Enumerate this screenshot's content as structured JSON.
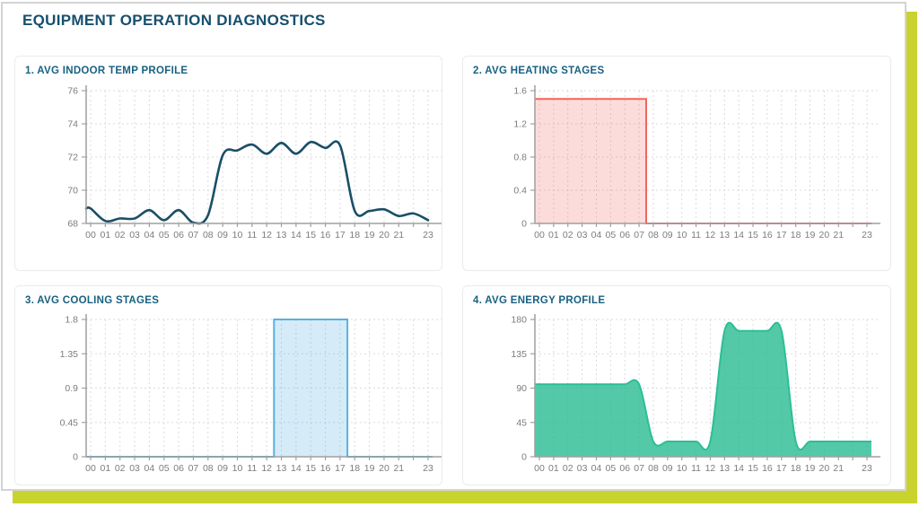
{
  "page": {
    "title": "EQUIPMENT OPERATION DIAGNOSTICS",
    "colors": {
      "accent": "#c9d32e",
      "page_title": "#164f6e",
      "card_title": "#186183",
      "axis": "#9f9f9f",
      "grid": "#dbdbdb",
      "tick_label": "#7c7c7c"
    }
  },
  "chart_data": [
    {
      "type": "line",
      "title": "1. AVG INDOOR TEMP PROFILE",
      "x": [
        0,
        1,
        2,
        3,
        4,
        5,
        6,
        7,
        8,
        9,
        10,
        11,
        12,
        13,
        14,
        15,
        16,
        17,
        18,
        19,
        20,
        21,
        22,
        23
      ],
      "values": [
        68.9,
        68.15,
        68.3,
        68.3,
        68.8,
        68.2,
        68.8,
        68.05,
        68.5,
        72.1,
        72.4,
        72.75,
        72.2,
        72.85,
        72.2,
        72.9,
        72.55,
        72.7,
        68.75,
        68.75,
        68.85,
        68.45,
        68.6,
        68.2
      ],
      "ylim": [
        68,
        76
      ],
      "yticks": [
        68,
        70,
        72,
        74,
        76
      ],
      "ytick_labels": [
        "68",
        "70",
        "72",
        "74",
        "76"
      ],
      "xtick_labels": [
        "00",
        "01",
        "02",
        "03",
        "04",
        "05",
        "06",
        "07",
        "08",
        "09",
        "10",
        "11",
        "12",
        "13",
        "14",
        "15",
        "16",
        "17",
        "18",
        "19",
        "20",
        "21",
        "",
        "23"
      ],
      "line_color": "#1a4f66",
      "grid": true,
      "legend": "none"
    },
    {
      "type": "area-step",
      "title": "2. AVG HEATING STAGES",
      "x": [
        0,
        1,
        2,
        3,
        4,
        5,
        6,
        7,
        8,
        9,
        10,
        11,
        12,
        13,
        14,
        15,
        16,
        17,
        18,
        19,
        20,
        21,
        22,
        23
      ],
      "values": [
        1.5,
        1.5,
        1.5,
        1.5,
        1.5,
        1.5,
        1.5,
        1.5,
        0,
        0,
        0,
        0,
        0,
        0,
        0,
        0,
        0,
        0,
        0,
        0,
        0,
        0,
        0,
        0
      ],
      "steps": [
        [
          0,
          1.5
        ],
        [
          7.5,
          1.5
        ],
        [
          7.5,
          0
        ],
        [
          23,
          0
        ]
      ],
      "ylim": [
        0,
        1.6
      ],
      "yticks": [
        0,
        0.4,
        0.8,
        1.2,
        1.6
      ],
      "ytick_labels": [
        "0",
        "0.4",
        "0.8",
        "1.2",
        "1.6"
      ],
      "xtick_labels": [
        "00",
        "01",
        "02",
        "03",
        "04",
        "05",
        "06",
        "07",
        "08",
        "09",
        "10",
        "11",
        "12",
        "13",
        "14",
        "15",
        "16",
        "17",
        "18",
        "19",
        "20",
        "21",
        "",
        "23"
      ],
      "stroke": "#f1655c",
      "fill": "rgba(241,97,90,0.22)",
      "grid": true,
      "legend": "none"
    },
    {
      "type": "area-step",
      "title": "3. AVG COOLING STAGES",
      "x": [
        0,
        1,
        2,
        3,
        4,
        5,
        6,
        7,
        8,
        9,
        10,
        11,
        12,
        13,
        14,
        15,
        16,
        17,
        18,
        19,
        20,
        21,
        22,
        23
      ],
      "values": [
        0,
        0,
        0,
        0,
        0,
        0,
        0,
        0,
        0,
        0,
        0,
        0,
        0,
        1.8,
        1.8,
        1.8,
        1.8,
        1.8,
        0,
        0,
        0,
        0,
        0,
        0
      ],
      "steps": [
        [
          0,
          0
        ],
        [
          12.5,
          0
        ],
        [
          12.5,
          1.8
        ],
        [
          17.5,
          1.8
        ],
        [
          17.5,
          0
        ],
        [
          23,
          0
        ]
      ],
      "ylim": [
        0,
        1.8
      ],
      "yticks": [
        0,
        0.45,
        0.9,
        1.35,
        1.8
      ],
      "ytick_labels": [
        "0",
        "0.45",
        "0.9",
        "1.35",
        "1.8"
      ],
      "xtick_labels": [
        "00",
        "01",
        "02",
        "03",
        "04",
        "05",
        "06",
        "07",
        "08",
        "09",
        "10",
        "11",
        "12",
        "13",
        "14",
        "15",
        "16",
        "17",
        "18",
        "19",
        "20",
        "21",
        "",
        "23"
      ],
      "stroke": "#58b1e2",
      "fill": "rgba(87,177,226,0.25)",
      "grid": true,
      "legend": "none"
    },
    {
      "type": "area",
      "title": "4. AVG ENERGY PROFILE",
      "x": [
        0,
        1,
        2,
        3,
        4,
        5,
        6,
        7,
        8,
        9,
        10,
        11,
        12,
        13,
        14,
        15,
        16,
        17,
        18,
        19,
        20,
        21,
        22,
        23
      ],
      "values": [
        95,
        95,
        95,
        95,
        95,
        95,
        95,
        95,
        20,
        20,
        20,
        20,
        20,
        165,
        165,
        165,
        165,
        165,
        20,
        20,
        20,
        20,
        20,
        20
      ],
      "ylim": [
        0,
        180
      ],
      "yticks": [
        0,
        45,
        90,
        135,
        180
      ],
      "ytick_labels": [
        "0",
        "45",
        "90",
        "135",
        "180"
      ],
      "xtick_labels": [
        "00",
        "01",
        "02",
        "03",
        "04",
        "05",
        "06",
        "07",
        "08",
        "09",
        "10",
        "11",
        "12",
        "13",
        "14",
        "15",
        "16",
        "17",
        "18",
        "19",
        "20",
        "21",
        "",
        "23"
      ],
      "stroke": "#2bbf95",
      "fill": "rgba(40,187,145,0.8)",
      "grid": true,
      "legend": "none"
    }
  ]
}
